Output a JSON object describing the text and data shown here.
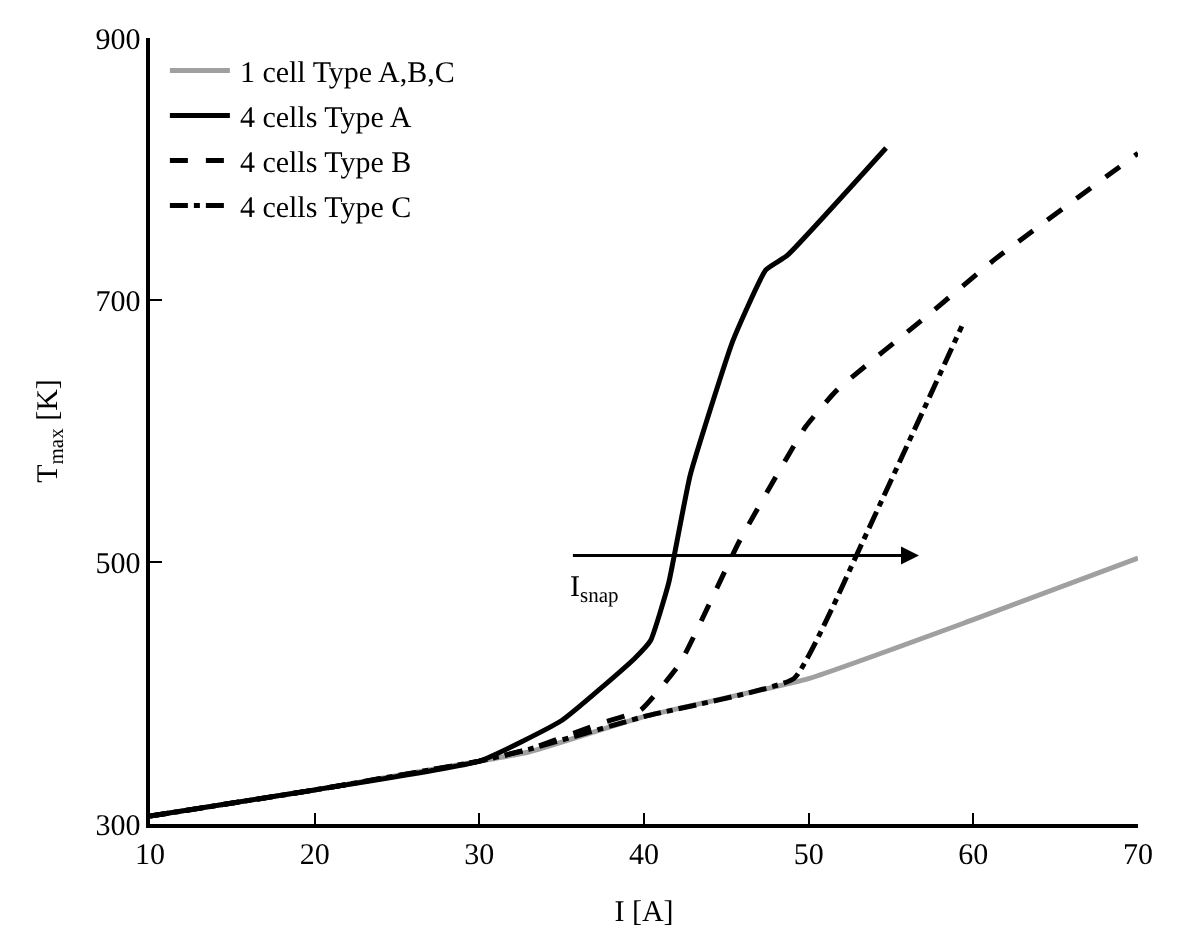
{
  "chart_data": {
    "type": "line",
    "xlabel": "I [A]",
    "ylabel": "T$_{max}$ [K]",
    "xlim": [
      10,
      70
    ],
    "xticks": [
      10,
      20,
      30,
      40,
      50,
      60,
      70
    ],
    "ylim": [
      300,
      900
    ],
    "yticks": [
      300,
      500,
      700,
      900
    ],
    "legend": "top left",
    "marker": "none",
    "annotations": [
      "I$_{snap}$"
    ],
    "series": [
      {
        "name": "1 cell Type A,B,C",
        "color": "#a0a0a0",
        "line_style": "solid",
        "x": [
          10,
          20,
          30,
          33,
          40,
          50,
          60,
          70
        ],
        "values": [
          306,
          326,
          348,
          355,
          382,
          411,
          456,
          503
        ]
      },
      {
        "name": "4 cells Type A",
        "color": "#000000",
        "line_style": "solid",
        "x": [
          10,
          20,
          30,
          35,
          39.4,
          40.4,
          41.5,
          42.8,
          45.4,
          47.4,
          48.7,
          54.7
        ],
        "values": [
          306,
          326,
          348,
          379,
          426,
          440,
          484,
          566,
          669,
          723,
          734,
          816
        ]
      },
      {
        "name": "4 cells Type B",
        "color": "#000000",
        "line_style": "dashed",
        "x": [
          10,
          20,
          30,
          33,
          37.4,
          39.8,
          42.2,
          45.8,
          49.8,
          51.7,
          57.3,
          61.3,
          70
        ],
        "values": [
          306,
          326,
          348,
          357,
          377,
          387,
          423,
          516,
          603,
          631,
          689,
          731,
          812
        ]
      },
      {
        "name": "4 cells Type C",
        "color": "#000000",
        "line_style": "dashdot",
        "x": [
          10,
          20,
          30,
          33,
          40,
          49.1,
          51.4,
          52.9,
          57.3,
          59.3
        ],
        "values": [
          306,
          326,
          348,
          357,
          382,
          411,
          464,
          505,
          625,
          680
        ]
      }
    ]
  }
}
